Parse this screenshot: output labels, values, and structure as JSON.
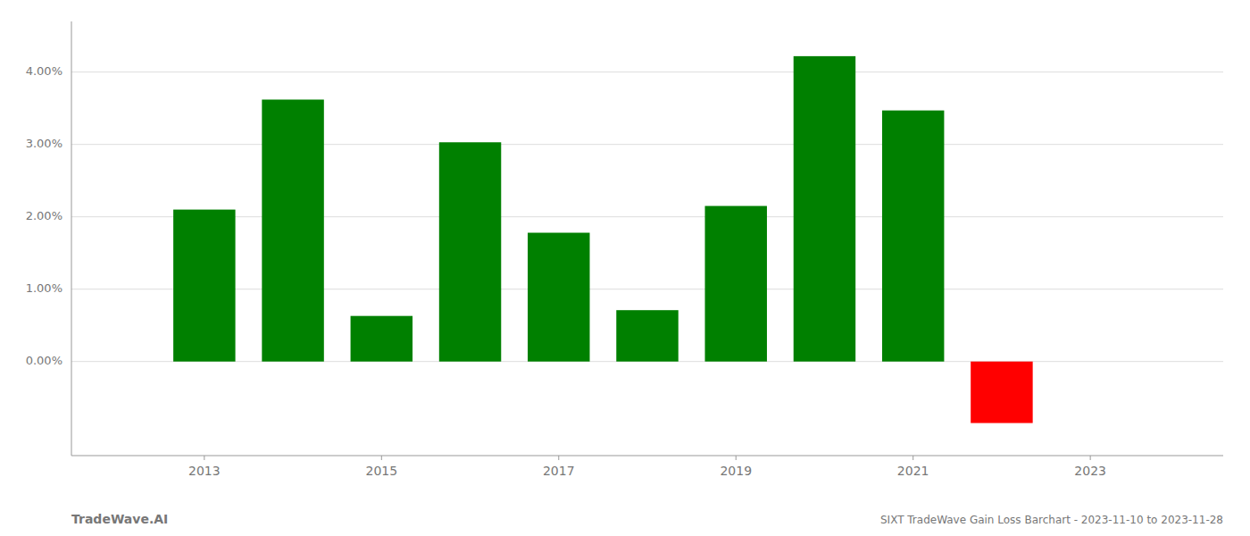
{
  "chart_data": {
    "type": "bar",
    "title": "SIXT TradeWave Gain Loss Barchart - 2023-11-10 to 2023-11-28",
    "annotations": [
      "TradeWave.AI"
    ],
    "x": [
      2013,
      2014,
      2015,
      2016,
      2017,
      2018,
      2019,
      2020,
      2021,
      2022
    ],
    "values": [
      0.021,
      0.0362,
      0.0063,
      0.0303,
      0.0178,
      0.0071,
      0.0215,
      0.0422,
      0.0347,
      -0.0085
    ],
    "colors": [
      "#008000",
      "#008000",
      "#008000",
      "#008000",
      "#008000",
      "#008000",
      "#008000",
      "#008000",
      "#008000",
      "#ff0000"
    ],
    "xlim": [
      2011.5,
      2024.5
    ],
    "xticks": [
      2013,
      2015,
      2017,
      2019,
      2021,
      2023
    ],
    "ylim": [
      -0.013,
      0.047
    ],
    "yticks": [
      {
        "value": 0.0,
        "label": "0.00%"
      },
      {
        "value": 0.01,
        "label": "1.00%"
      },
      {
        "value": 0.02,
        "label": "2.00%"
      },
      {
        "value": 0.03,
        "label": "3.00%"
      },
      {
        "value": 0.04,
        "label": "4.00%"
      }
    ],
    "grid": true
  }
}
